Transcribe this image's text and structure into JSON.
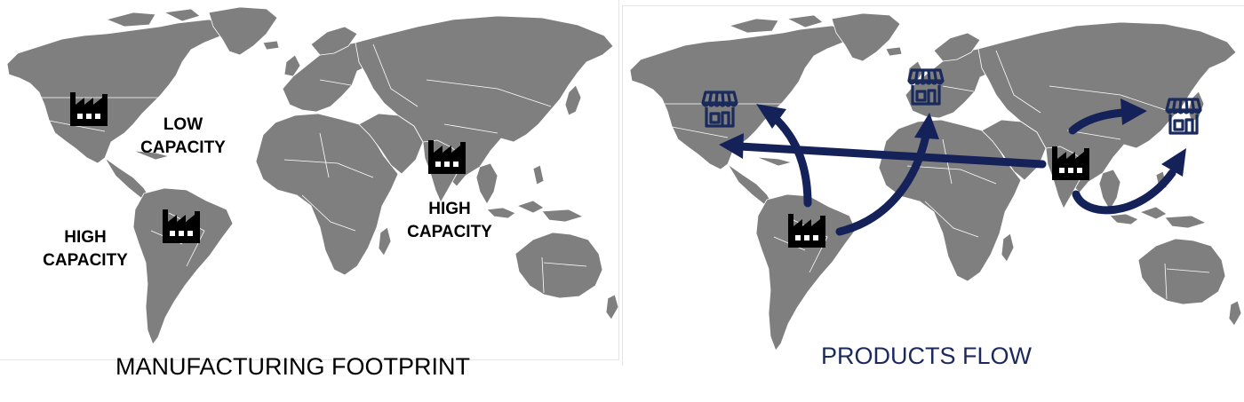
{
  "left_panel": {
    "caption": "MANUFACTURING FOOTPRINT",
    "labels": {
      "north_america": "LOW\nCAPACITY",
      "south_america": "HIGH\nCAPACITY",
      "india": "HIGH\nCAPACITY"
    }
  },
  "right_panel": {
    "caption": "PRODUCTS FLOW"
  },
  "colors": {
    "land": "#7f7f7f",
    "flow": "#15225a",
    "store": "#1b2a5c",
    "factory": "#000000",
    "caption_right": "#1b2a5c"
  },
  "icons": {
    "factory": "factory-icon",
    "store": "store-icon"
  }
}
